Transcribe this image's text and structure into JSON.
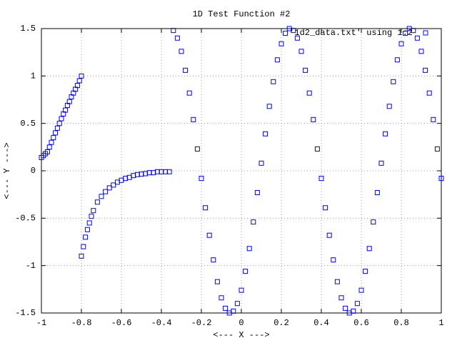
{
  "chart_data": {
    "type": "scatter",
    "title": "1D Test Function #2",
    "x_label": "<--- X --->",
    "y_label": "<--- Y --->",
    "xlim": [
      -1,
      1
    ],
    "ylim": [
      -1.5,
      1.5
    ],
    "xticks": [
      -1,
      -0.8,
      -0.6,
      -0.4,
      -0.2,
      0,
      0.2,
      0.4,
      0.6,
      0.8,
      1
    ],
    "yticks": [
      -1.5,
      -1,
      -0.5,
      0,
      0.5,
      1,
      1.5
    ],
    "grid": true,
    "legend": "top-right",
    "x": [
      -1,
      -0.99,
      -0.98,
      -0.97,
      -0.96,
      -0.95,
      -0.94,
      -0.93,
      -0.92,
      -0.91,
      -0.9,
      -0.89,
      -0.88,
      -0.87,
      -0.86,
      -0.85,
      -0.84,
      -0.83,
      -0.82,
      -0.81,
      -0.8,
      -0.8,
      -0.79,
      -0.78,
      -0.77,
      -0.76,
      -0.75,
      -0.74,
      -0.72,
      -0.7,
      -0.68,
      -0.66,
      -0.64,
      -0.62,
      -0.6,
      -0.58,
      -0.56,
      -0.54,
      -0.52,
      -0.5,
      -0.48,
      -0.46,
      -0.44,
      -0.42,
      -0.4,
      -0.38,
      -0.36,
      -0.34,
      -0.32,
      -0.3,
      -0.28,
      -0.26,
      -0.24,
      -0.22,
      -0.2,
      -0.18,
      -0.16,
      -0.14,
      -0.12,
      -0.1,
      -0.08,
      -0.06,
      -0.04,
      -0.02,
      0,
      0.02,
      0.04,
      0.06,
      0.08,
      0.1,
      0.12,
      0.14,
      0.16,
      0.18,
      0.2,
      0.22,
      0.24,
      0.26,
      0.28,
      0.3,
      0.32,
      0.34,
      0.36,
      0.38,
      0.4,
      0.42,
      0.44,
      0.46,
      0.48,
      0.5,
      0.52,
      0.54,
      0.56,
      0.58,
      0.6,
      0.62,
      0.64,
      0.66,
      0.68,
      0.7,
      0.72,
      0.74,
      0.76,
      0.78,
      0.8,
      0.82,
      0.84,
      0.86,
      0.88,
      0.9,
      0.92,
      0.94,
      0.96,
      0.98,
      1
    ],
    "series": [
      {
        "name": "'1d2_data.txt' using 1:2",
        "color": "#0000ff",
        "values": [
          0.14,
          0.16,
          0.18,
          0.2,
          0.25,
          0.3,
          0.35,
          0.4,
          0.45,
          0.5,
          0.55,
          0.6,
          0.64,
          0.69,
          0.73,
          0.78,
          0.82,
          0.86,
          0.9,
          0.95,
          1.0,
          -0.9,
          -0.8,
          -0.7,
          -0.62,
          -0.55,
          -0.48,
          -0.42,
          -0.33,
          -0.27,
          -0.22,
          -0.18,
          -0.15,
          -0.12,
          -0.1,
          -0.08,
          -0.07,
          -0.05,
          -0.04,
          -0.035,
          -0.03,
          -0.02,
          -0.02,
          -0.01,
          -0.01,
          -0.01,
          -0.01,
          1.48,
          1.4,
          1.26,
          1.06,
          0.82,
          0.54,
          0.23,
          -0.08,
          -0.39,
          -0.68,
          -0.94,
          -1.17,
          -1.34,
          -1.45,
          -1.5,
          -1.48,
          -1.4,
          -1.26,
          -1.06,
          -0.82,
          -0.54,
          -0.23,
          0.08,
          0.39,
          0.68,
          0.94,
          1.17,
          1.34,
          1.45,
          1.5,
          1.48,
          1.4,
          1.26,
          1.06,
          0.82,
          0.54,
          0.23,
          -0.08,
          -0.39,
          -0.68,
          -0.94,
          -1.17,
          -1.34,
          -1.45,
          -1.5,
          -1.48,
          -1.4,
          -1.26,
          -1.06,
          -0.82,
          -0.54,
          -0.23,
          0.08,
          0.39,
          0.68,
          0.94,
          1.17,
          1.34,
          1.45,
          1.5,
          1.48,
          1.4,
          1.26,
          1.06,
          0.82,
          0.54,
          0.23,
          -0.08
        ]
      }
    ]
  }
}
